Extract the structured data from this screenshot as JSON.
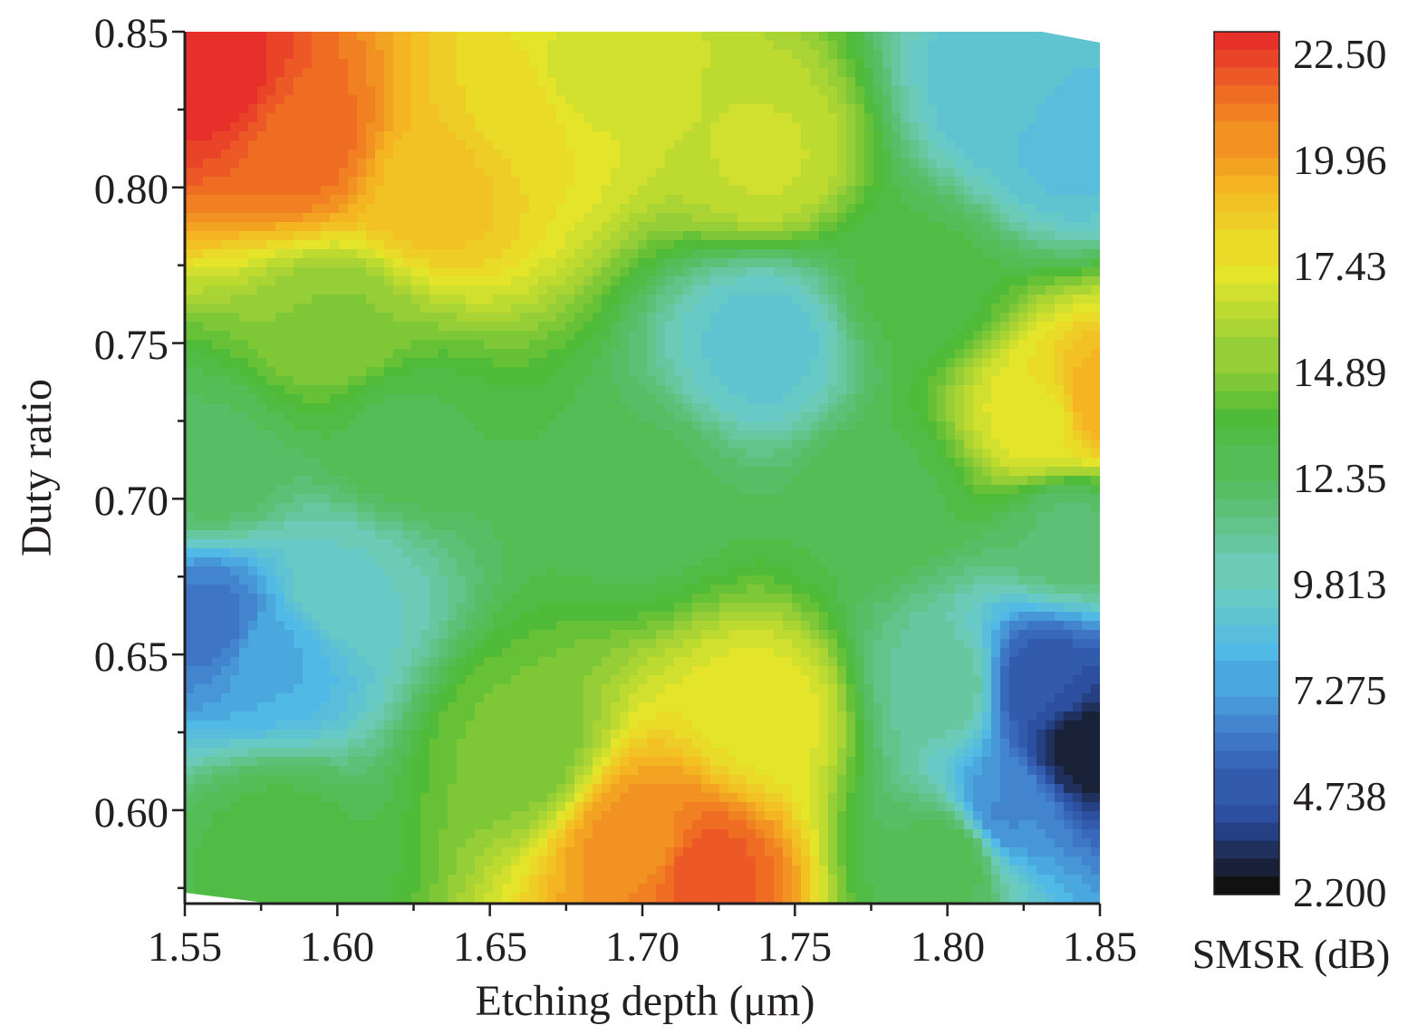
{
  "chart_data": {
    "type": "heatmap",
    "subtype": "filled-contour",
    "xlabel": "Etching depth (μm)",
    "ylabel": "Duty ratio",
    "x_ticks": [
      "1.55",
      "1.60",
      "1.65",
      "1.70",
      "1.75",
      "1.80",
      "1.85"
    ],
    "y_ticks": [
      "0.85",
      "0.80",
      "0.75",
      "0.70",
      "0.65",
      "0.60"
    ],
    "xlim": [
      1.55,
      1.85
    ],
    "ylim": [
      0.57,
      0.85
    ],
    "grid": false,
    "colorbar": {
      "label": "SMSR (dB)",
      "ticks": [
        "22.50",
        "19.96",
        "17.43",
        "14.89",
        "12.35",
        "9.813",
        "7.275",
        "4.738",
        "2.200"
      ],
      "range": [
        2.2,
        22.5
      ],
      "colors": [
        "#111111",
        "#2b4a9c",
        "#3f78c8",
        "#4fb8e6",
        "#6dcdc0",
        "#5cbf72",
        "#4cba38",
        "#9fd136",
        "#e6e62a",
        "#f5b922",
        "#f07a22",
        "#e8302a"
      ]
    },
    "sources": [
      {
        "x": 1.56,
        "y": 0.835,
        "v": 22.5
      },
      {
        "x": 1.59,
        "y": 0.815,
        "v": 21.0
      },
      {
        "x": 1.63,
        "y": 0.8,
        "v": 18.5
      },
      {
        "x": 1.66,
        "y": 0.825,
        "v": 17.6
      },
      {
        "x": 1.68,
        "y": 0.835,
        "v": 16.5
      },
      {
        "x": 1.74,
        "y": 0.81,
        "v": 16.2
      },
      {
        "x": 1.74,
        "y": 0.75,
        "v": 8.8
      },
      {
        "x": 1.82,
        "y": 0.83,
        "v": 8.6
      },
      {
        "x": 1.84,
        "y": 0.815,
        "v": 8.4
      },
      {
        "x": 1.85,
        "y": 0.73,
        "v": 19.2
      },
      {
        "x": 1.832,
        "y": 0.725,
        "v": 17.0
      },
      {
        "x": 1.56,
        "y": 0.66,
        "v": 5.8
      },
      {
        "x": 1.58,
        "y": 0.65,
        "v": 7.5
      },
      {
        "x": 1.6,
        "y": 0.67,
        "v": 9.5
      },
      {
        "x": 1.72,
        "y": 0.58,
        "v": 21.5
      },
      {
        "x": 1.7,
        "y": 0.59,
        "v": 20.0
      },
      {
        "x": 1.74,
        "y": 0.63,
        "v": 17.0
      },
      {
        "x": 1.66,
        "y": 0.62,
        "v": 14.2
      },
      {
        "x": 1.845,
        "y": 0.62,
        "v": 2.6
      },
      {
        "x": 1.83,
        "y": 0.64,
        "v": 4.5
      },
      {
        "x": 1.82,
        "y": 0.6,
        "v": 6.5
      },
      {
        "x": 1.8,
        "y": 0.64,
        "v": 10.5
      },
      {
        "x": 1.62,
        "y": 0.72,
        "v": 12.5
      },
      {
        "x": 1.7,
        "y": 0.7,
        "v": 12.3
      },
      {
        "x": 1.78,
        "y": 0.7,
        "v": 12.5
      },
      {
        "x": 1.6,
        "y": 0.755,
        "v": 14.6
      },
      {
        "x": 1.58,
        "y": 0.59,
        "v": 12.8
      },
      {
        "x": 1.79,
        "y": 0.77,
        "v": 12.8
      },
      {
        "x": 1.56,
        "y": 0.71,
        "v": 12.0
      },
      {
        "x": 1.8,
        "y": 0.585,
        "v": 12.5
      },
      {
        "x": 1.84,
        "y": 0.69,
        "v": 11.5
      }
    ]
  }
}
